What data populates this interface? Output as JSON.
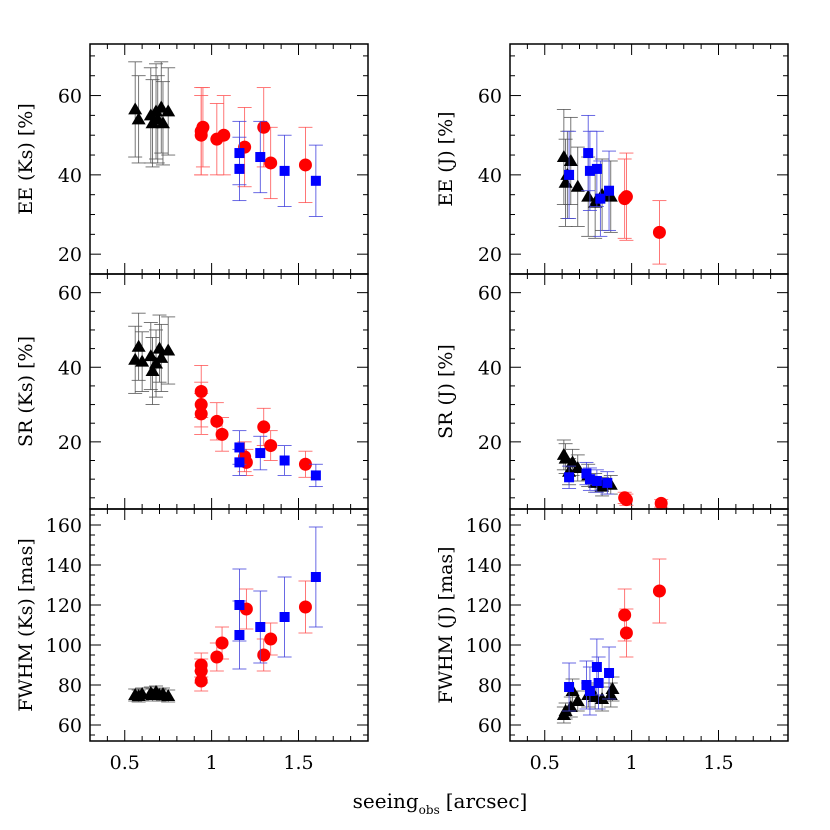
{
  "xlabel_main": "seeing",
  "xlabel_sub": "obs",
  "xlabel_unit": "[arcsec]",
  "chart_data": [
    {
      "type": "scatter",
      "ylabel": "EE (Ks) [%]",
      "xlim": [
        0.3,
        1.9
      ],
      "ylim": [
        15,
        73
      ],
      "xticks": [
        0.5,
        1,
        1.5
      ],
      "xticklabels": [
        "0.5",
        "1",
        "1.5"
      ],
      "show_xticklabels": false,
      "yticks": [
        20,
        40,
        60
      ],
      "yticklabels": [
        "20",
        "40",
        "60"
      ],
      "series": [
        {
          "color": "#000000",
          "marker": "triangle",
          "points": [
            {
              "x": 0.56,
              "y": 56.5,
              "err": 12
            },
            {
              "x": 0.58,
              "y": 54,
              "err": 11
            },
            {
              "x": 0.65,
              "y": 55,
              "err": 12
            },
            {
              "x": 0.66,
              "y": 53,
              "err": 11
            },
            {
              "x": 0.68,
              "y": 56,
              "err": 12
            },
            {
              "x": 0.69,
              "y": 54,
              "err": 11
            },
            {
              "x": 0.71,
              "y": 57,
              "err": 11.5
            },
            {
              "x": 0.72,
              "y": 53,
              "err": 10.5
            },
            {
              "x": 0.75,
              "y": 56,
              "err": 11
            }
          ]
        },
        {
          "color": "#ff0000",
          "marker": "circle",
          "points": [
            {
              "x": 0.94,
              "y": 51,
              "err": 11
            },
            {
              "x": 0.94,
              "y": 50,
              "err": 10
            },
            {
              "x": 0.95,
              "y": 52,
              "err": 10
            },
            {
              "x": 1.03,
              "y": 49,
              "err": 9
            },
            {
              "x": 1.07,
              "y": 50,
              "err": 10
            },
            {
              "x": 1.19,
              "y": 47,
              "err": 10
            },
            {
              "x": 1.3,
              "y": 52,
              "err": 10
            },
            {
              "x": 1.34,
              "y": 43,
              "err": 9
            },
            {
              "x": 1.54,
              "y": 42.5,
              "err": 9.5
            }
          ]
        },
        {
          "color": "#0000ff",
          "marker": "square",
          "points": [
            {
              "x": 1.16,
              "y": 45.5,
              "err": 8
            },
            {
              "x": 1.16,
              "y": 41.5,
              "err": 8
            },
            {
              "x": 1.28,
              "y": 44.5,
              "err": 9
            },
            {
              "x": 1.42,
              "y": 41,
              "err": 9
            },
            {
              "x": 1.6,
              "y": 38.5,
              "err": 9
            }
          ]
        }
      ]
    },
    {
      "type": "scatter",
      "ylabel": "EE (J) [%]",
      "xlim": [
        0.3,
        1.9
      ],
      "ylim": [
        15,
        73
      ],
      "xticks": [
        0.5,
        1,
        1.5
      ],
      "xticklabels": [
        "0.5",
        "1",
        "1.5"
      ],
      "show_xticklabels": false,
      "yticks": [
        20,
        40,
        60
      ],
      "yticklabels": [
        "20",
        "40",
        "60"
      ],
      "series": [
        {
          "color": "#000000",
          "marker": "triangle",
          "points": [
            {
              "x": 0.61,
              "y": 44.5,
              "err": 12
            },
            {
              "x": 0.62,
              "y": 38,
              "err": 11
            },
            {
              "x": 0.63,
              "y": 40,
              "err": 11
            },
            {
              "x": 0.65,
              "y": 43.5,
              "err": 11
            },
            {
              "x": 0.69,
              "y": 37,
              "err": 10
            },
            {
              "x": 0.75,
              "y": 34.5,
              "err": 10
            },
            {
              "x": 0.79,
              "y": 33,
              "err": 9
            },
            {
              "x": 0.83,
              "y": 35,
              "err": 9
            },
            {
              "x": 0.88,
              "y": 34.5,
              "err": 9
            }
          ]
        },
        {
          "color": "#0000ff",
          "marker": "square",
          "points": [
            {
              "x": 0.64,
              "y": 40,
              "err": 11
            },
            {
              "x": 0.75,
              "y": 45.5,
              "err": 9.5
            },
            {
              "x": 0.76,
              "y": 41,
              "err": 10
            },
            {
              "x": 0.8,
              "y": 41.5,
              "err": 9.5
            },
            {
              "x": 0.82,
              "y": 34,
              "err": 9.5
            },
            {
              "x": 0.87,
              "y": 36,
              "err": 10
            }
          ]
        },
        {
          "color": "#ff0000",
          "marker": "circle",
          "points": [
            {
              "x": 0.96,
              "y": 34,
              "err": 10
            },
            {
              "x": 0.97,
              "y": 34.5,
              "err": 11
            },
            {
              "x": 1.16,
              "y": 25.5,
              "err": 8
            }
          ]
        }
      ]
    },
    {
      "type": "scatter",
      "ylabel": "SR (Ks) [%]",
      "xlim": [
        0.3,
        1.9
      ],
      "ylim": [
        2,
        65
      ],
      "xticks": [
        0.5,
        1,
        1.5
      ],
      "xticklabels": [
        "0.5",
        "1",
        "1.5"
      ],
      "show_xticklabels": false,
      "yticks": [
        20,
        40,
        60
      ],
      "yticklabels": [
        "20",
        "40",
        "60"
      ],
      "series": [
        {
          "color": "#000000",
          "marker": "triangle",
          "points": [
            {
              "x": 0.56,
              "y": 42,
              "err": 9
            },
            {
              "x": 0.58,
              "y": 45.5,
              "err": 9
            },
            {
              "x": 0.6,
              "y": 41.5,
              "err": 8
            },
            {
              "x": 0.65,
              "y": 43,
              "err": 9
            },
            {
              "x": 0.66,
              "y": 39,
              "err": 9
            },
            {
              "x": 0.68,
              "y": 41,
              "err": 9
            },
            {
              "x": 0.7,
              "y": 45,
              "err": 9
            },
            {
              "x": 0.71,
              "y": 42.5,
              "err": 9
            },
            {
              "x": 0.75,
              "y": 44.5,
              "err": 9
            }
          ]
        },
        {
          "color": "#ff0000",
          "marker": "circle",
          "points": [
            {
              "x": 0.94,
              "y": 33.5,
              "err": 7
            },
            {
              "x": 0.94,
              "y": 30,
              "err": 6
            },
            {
              "x": 0.94,
              "y": 27.5,
              "err": 5.5
            },
            {
              "x": 1.03,
              "y": 25.5,
              "err": 5
            },
            {
              "x": 1.06,
              "y": 22,
              "err": 4.5
            },
            {
              "x": 1.19,
              "y": 16,
              "err": 4
            },
            {
              "x": 1.2,
              "y": 14.5,
              "err": 3.5
            },
            {
              "x": 1.3,
              "y": 24,
              "err": 5
            },
            {
              "x": 1.34,
              "y": 19,
              "err": 4
            },
            {
              "x": 1.54,
              "y": 14,
              "err": 3.5
            }
          ]
        },
        {
          "color": "#0000ff",
          "marker": "square",
          "points": [
            {
              "x": 1.16,
              "y": 18.5,
              "err": 4.5
            },
            {
              "x": 1.16,
              "y": 14.5,
              "err": 3.5
            },
            {
              "x": 1.28,
              "y": 17,
              "err": 4.5
            },
            {
              "x": 1.42,
              "y": 15,
              "err": 4
            },
            {
              "x": 1.6,
              "y": 11,
              "err": 3
            }
          ]
        }
      ]
    },
    {
      "type": "scatter",
      "ylabel": "SR (J) [%]",
      "xlim": [
        0.3,
        1.9
      ],
      "ylim": [
        2,
        65
      ],
      "xticks": [
        0.5,
        1,
        1.5
      ],
      "xticklabels": [
        "0.5",
        "1",
        "1.5"
      ],
      "show_xticklabels": false,
      "yticks": [
        20,
        40,
        60
      ],
      "yticklabels": [
        "20",
        "40",
        "60"
      ],
      "series": [
        {
          "color": "#000000",
          "marker": "triangle",
          "points": [
            {
              "x": 0.61,
              "y": 16.5,
              "err": 4
            },
            {
              "x": 0.62,
              "y": 15.5,
              "err": 4
            },
            {
              "x": 0.64,
              "y": 12,
              "err": 3.5
            },
            {
              "x": 0.66,
              "y": 14.5,
              "err": 3.5
            },
            {
              "x": 0.69,
              "y": 13,
              "err": 3.5
            },
            {
              "x": 0.75,
              "y": 11,
              "err": 3
            },
            {
              "x": 0.79,
              "y": 9,
              "err": 2.5
            },
            {
              "x": 0.83,
              "y": 8,
              "err": 2.5
            },
            {
              "x": 0.88,
              "y": 8.5,
              "err": 2.5
            }
          ]
        },
        {
          "color": "#0000ff",
          "marker": "square",
          "points": [
            {
              "x": 0.64,
              "y": 10.5,
              "err": 3
            },
            {
              "x": 0.74,
              "y": 11.5,
              "err": 3
            },
            {
              "x": 0.76,
              "y": 10,
              "err": 3
            },
            {
              "x": 0.8,
              "y": 9.5,
              "err": 3
            },
            {
              "x": 0.86,
              "y": 9,
              "err": 3
            }
          ]
        },
        {
          "color": "#ff0000",
          "marker": "circle",
          "points": [
            {
              "x": 0.96,
              "y": 5,
              "err": 1.5
            },
            {
              "x": 0.97,
              "y": 4.5,
              "err": 1.5
            },
            {
              "x": 1.17,
              "y": 3.5,
              "err": 1
            }
          ]
        }
      ]
    },
    {
      "type": "scatter",
      "ylabel": "FWHM (Ks) [mas]",
      "xlim": [
        0.3,
        1.9
      ],
      "ylim": [
        52,
        168
      ],
      "xticks": [
        0.5,
        1,
        1.5
      ],
      "xticklabels": [
        "0.5",
        "1",
        "1.5"
      ],
      "show_xticklabels": true,
      "yticks": [
        60,
        80,
        100,
        120,
        140,
        160
      ],
      "yticklabels": [
        "60",
        "80",
        "100",
        "120",
        "140",
        "160"
      ],
      "series": [
        {
          "color": "#000000",
          "marker": "triangle",
          "points": [
            {
              "x": 0.56,
              "y": 75,
              "err": 3
            },
            {
              "x": 0.58,
              "y": 74.5,
              "err": 3
            },
            {
              "x": 0.6,
              "y": 75.5,
              "err": 3
            },
            {
              "x": 0.65,
              "y": 76,
              "err": 3
            },
            {
              "x": 0.66,
              "y": 75,
              "err": 3
            },
            {
              "x": 0.68,
              "y": 76.5,
              "err": 3
            },
            {
              "x": 0.7,
              "y": 75,
              "err": 3
            },
            {
              "x": 0.72,
              "y": 75.5,
              "err": 3
            },
            {
              "x": 0.75,
              "y": 74.5,
              "err": 3
            }
          ]
        },
        {
          "color": "#ff0000",
          "marker": "circle",
          "points": [
            {
              "x": 0.94,
              "y": 90,
              "err": 6
            },
            {
              "x": 0.94,
              "y": 87,
              "err": 6
            },
            {
              "x": 0.94,
              "y": 82,
              "err": 5
            },
            {
              "x": 1.03,
              "y": 94,
              "err": 7
            },
            {
              "x": 1.06,
              "y": 101,
              "err": 8
            },
            {
              "x": 1.2,
              "y": 118,
              "err": 10
            },
            {
              "x": 1.3,
              "y": 95,
              "err": 8
            },
            {
              "x": 1.34,
              "y": 103,
              "err": 8
            },
            {
              "x": 1.54,
              "y": 119,
              "err": 13
            }
          ]
        },
        {
          "color": "#0000ff",
          "marker": "square",
          "points": [
            {
              "x": 1.16,
              "y": 120,
              "err": 18
            },
            {
              "x": 1.16,
              "y": 105,
              "err": 17
            },
            {
              "x": 1.28,
              "y": 109,
              "err": 18
            },
            {
              "x": 1.42,
              "y": 114,
              "err": 20
            },
            {
              "x": 1.6,
              "y": 134,
              "err": 25
            }
          ]
        }
      ]
    },
    {
      "type": "scatter",
      "ylabel": "FWHM (J) [mas]",
      "xlim": [
        0.3,
        1.9
      ],
      "ylim": [
        52,
        168
      ],
      "xticks": [
        0.5,
        1,
        1.5
      ],
      "xticklabels": [
        "0.5",
        "1",
        "1.5"
      ],
      "show_xticklabels": true,
      "yticks": [
        60,
        80,
        100,
        120,
        140,
        160
      ],
      "yticklabels": [
        "60",
        "80",
        "100",
        "120",
        "140",
        "160"
      ],
      "series": [
        {
          "color": "#000000",
          "marker": "triangle",
          "points": [
            {
              "x": 0.61,
              "y": 65,
              "err": 4
            },
            {
              "x": 0.62,
              "y": 67,
              "err": 4
            },
            {
              "x": 0.65,
              "y": 69,
              "err": 5
            },
            {
              "x": 0.66,
              "y": 77,
              "err": 6
            },
            {
              "x": 0.69,
              "y": 72,
              "err": 5
            },
            {
              "x": 0.75,
              "y": 75,
              "err": 6
            },
            {
              "x": 0.79,
              "y": 74,
              "err": 6
            },
            {
              "x": 0.83,
              "y": 73,
              "err": 6
            },
            {
              "x": 0.88,
              "y": 75,
              "err": 6
            },
            {
              "x": 0.89,
              "y": 78,
              "err": 6
            }
          ]
        },
        {
          "color": "#0000ff",
          "marker": "square",
          "points": [
            {
              "x": 0.64,
              "y": 79,
              "err": 12
            },
            {
              "x": 0.74,
              "y": 80,
              "err": 12
            },
            {
              "x": 0.76,
              "y": 77,
              "err": 12
            },
            {
              "x": 0.8,
              "y": 89,
              "err": 14
            },
            {
              "x": 0.81,
              "y": 81,
              "err": 13
            },
            {
              "x": 0.87,
              "y": 86,
              "err": 13
            }
          ]
        },
        {
          "color": "#ff0000",
          "marker": "circle",
          "points": [
            {
              "x": 0.96,
              "y": 115,
              "err": 13
            },
            {
              "x": 0.97,
              "y": 106,
              "err": 12
            },
            {
              "x": 1.16,
              "y": 127,
              "err": 16
            }
          ]
        }
      ]
    }
  ]
}
